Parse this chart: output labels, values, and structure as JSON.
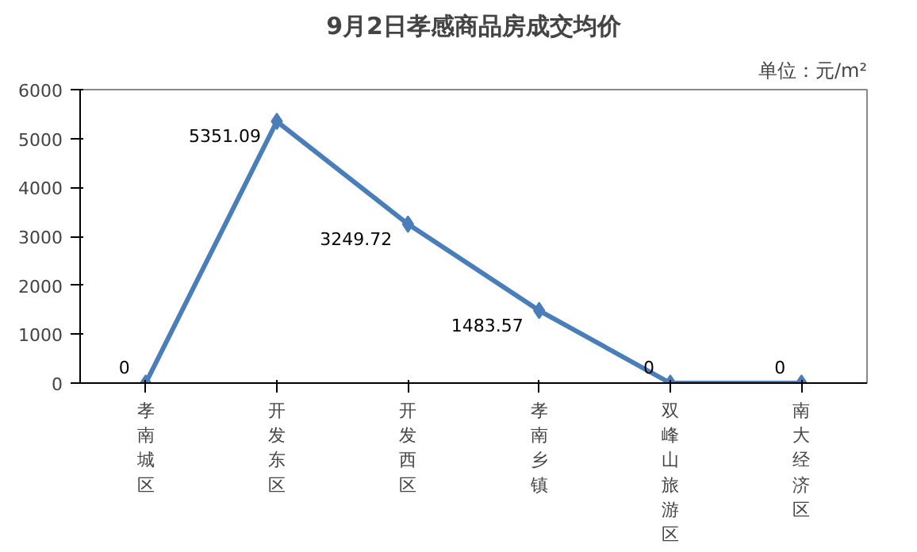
{
  "chart_data": {
    "type": "line",
    "title": "9月2日孝感商品房成交均价",
    "annotations": [
      "单位：元/m²"
    ],
    "categories": [
      "孝南城区",
      "开发东区",
      "开发西区",
      "孝南乡镇",
      "双峰山旅游区",
      "南大经济区"
    ],
    "series": [
      {
        "color": "#4a7ebb",
        "values": [
          0,
          5351.09,
          3249.72,
          1483.57,
          0,
          0
        ]
      }
    ],
    "ylim": [
      0,
      6000
    ],
    "yticks": [
      0,
      1000,
      2000,
      3000,
      4000,
      5000,
      6000
    ],
    "marker": "diamond",
    "data_labels": true,
    "grid": false
  }
}
